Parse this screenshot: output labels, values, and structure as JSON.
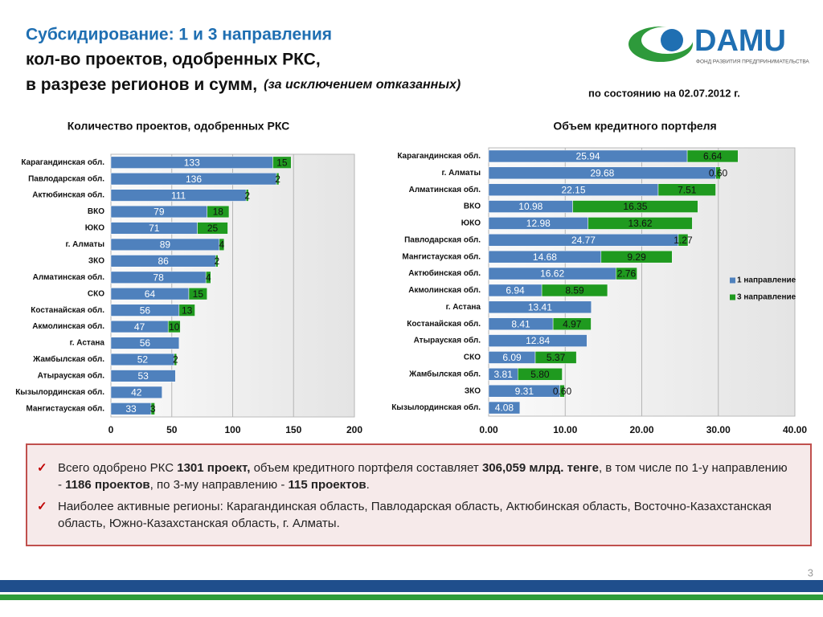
{
  "header": {
    "line1": "Субсидирование: 1 и 3 направления",
    "line2": "кол-во проектов, одобренных РКС,",
    "line3": "в разрезе регионов и сумм,",
    "line3_note": "(за исключением отказанных)",
    "date": "по состоянию на 02.07.2012 г.",
    "logo": "DAMU",
    "logo_sub": "ФОНД РАЗВИТИЯ ПРЕДПРИНИМАТЕЛЬСТВА"
  },
  "chart_data": [
    {
      "type": "bar_stacked_horizontal",
      "title": "Количество проектов, одобренных РКС",
      "categories": [
        "Карагандинская обл.",
        "Павлодарская обл.",
        "Актюбинская обл.",
        "ВКО",
        "ЮКО",
        "г. Алматы",
        "ЗКО",
        "Алматинская обл.",
        "СКО",
        "Костанайская обл.",
        "Акмолинская обл.",
        "г. Астана",
        "Жамбылская обл.",
        "Атырауская обл.",
        "Кызылординская обл.",
        "Мангистауская обл."
      ],
      "series": [
        {
          "color": "#4f81bd",
          "values": [
            133,
            136,
            111,
            79,
            71,
            89,
            86,
            78,
            64,
            56,
            47,
            56,
            52,
            53,
            42,
            33
          ]
        },
        {
          "color": "#1f9a1f",
          "values": [
            15,
            2,
            2,
            18,
            25,
            4,
            2,
            4,
            15,
            13,
            10,
            null,
            2,
            null,
            null,
            3
          ]
        }
      ],
      "xlim": [
        0,
        200
      ],
      "xticks": [
        0,
        50,
        100,
        150,
        200
      ],
      "grid": true
    },
    {
      "type": "bar_stacked_horizontal",
      "title": "Объем кредитного портфеля",
      "categories": [
        "Карагандинская обл.",
        "г. Алматы",
        "Алматинская обл.",
        "ВКО",
        "ЮКО",
        "Павлодарская обл.",
        "Мангистауская обл.",
        "Актюбинская обл.",
        "Акмолинская обл.",
        "г. Астана",
        "Костанайская обл.",
        "Атырауская обл.",
        "СКО",
        "Жамбылская обл.",
        "ЗКО",
        "Кызылординская обл."
      ],
      "series": [
        {
          "name": "1 направление",
          "color": "#4f81bd",
          "values": [
            25.94,
            29.68,
            22.15,
            10.98,
            12.98,
            24.77,
            14.68,
            16.62,
            6.94,
            13.41,
            8.41,
            12.84,
            6.09,
            3.81,
            9.31,
            4.08
          ]
        },
        {
          "name": "3 направление",
          "color": "#1f9a1f",
          "values": [
            6.64,
            0.6,
            7.51,
            16.35,
            13.62,
            1.27,
            9.29,
            2.76,
            8.59,
            null,
            4.97,
            null,
            5.37,
            5.8,
            0.6,
            null
          ],
          "value_labels": [
            "6.64",
            "0.60",
            "7.51",
            "16.35",
            "13.62",
            "1.27",
            "9.29",
            "2.76",
            "8.59",
            null,
            "4.97",
            null,
            "5.37",
            "5.80",
            "0.60",
            null
          ]
        }
      ],
      "xlim": [
        0,
        40
      ],
      "xticks": [
        {
          "value": 0,
          "label": "0.00"
        },
        {
          "value": 10,
          "label": "10.00"
        },
        {
          "value": 20,
          "label": "20.00"
        },
        {
          "value": 30,
          "label": "30.00"
        },
        {
          "value": 40,
          "label": "40.00"
        }
      ],
      "grid": true,
      "legend": "right"
    }
  ],
  "notes": [
    [
      {
        "text": "Всего одобрено РКС "
      },
      {
        "text": "1301 проект,",
        "bold": true
      },
      {
        "text": " объем кредитного портфеля составляет "
      },
      {
        "text": "306,059 млрд. тенге",
        "bold": true
      },
      {
        "text": ", в том числе по 1-у направлению -  "
      },
      {
        "text": "1186 проектов",
        "bold": true
      },
      {
        "text": ", по 3-му направлению - "
      },
      {
        "text": "115 проектов",
        "bold": true
      },
      {
        "text": "."
      }
    ],
    [
      {
        "text": "Наиболее активные регионы: Карагандинская область, Павлодарская область, Актюбинская область, Восточно-Казахстанская область, Южно-Казахстанская область, г. Алматы."
      }
    ]
  ],
  "page_number": "3"
}
